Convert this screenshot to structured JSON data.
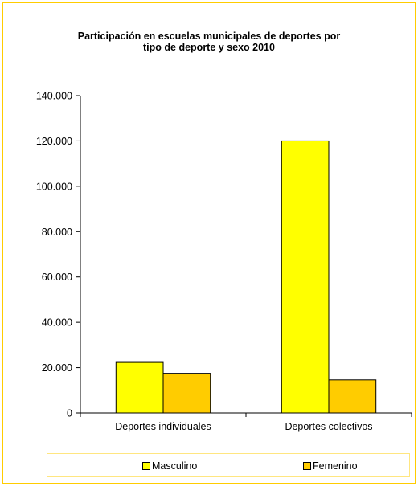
{
  "chart_data": {
    "type": "bar",
    "title": [
      "Participación en escuelas municipales de deportes por",
      "tipo de deporte y sexo  2010"
    ],
    "categories": [
      "Deportes individuales",
      "Deportes colectivos"
    ],
    "series": [
      {
        "name": "Masculino",
        "values": [
          22300,
          120000
        ],
        "color": "#ffff00"
      },
      {
        "name": "Femenino",
        "values": [
          17500,
          14600
        ],
        "color": "#ffcc00"
      }
    ],
    "ylim": [
      0,
      140000
    ],
    "yticks": [
      0,
      20000,
      40000,
      60000,
      80000,
      100000,
      120000,
      140000
    ],
    "ytick_labels": [
      "0",
      "20.000",
      "40.000",
      "60.000",
      "80.000",
      "100.000",
      "120.000",
      "140.000"
    ],
    "xlabel": "",
    "ylabel": "",
    "grid": false,
    "legend_position": "bottom"
  }
}
